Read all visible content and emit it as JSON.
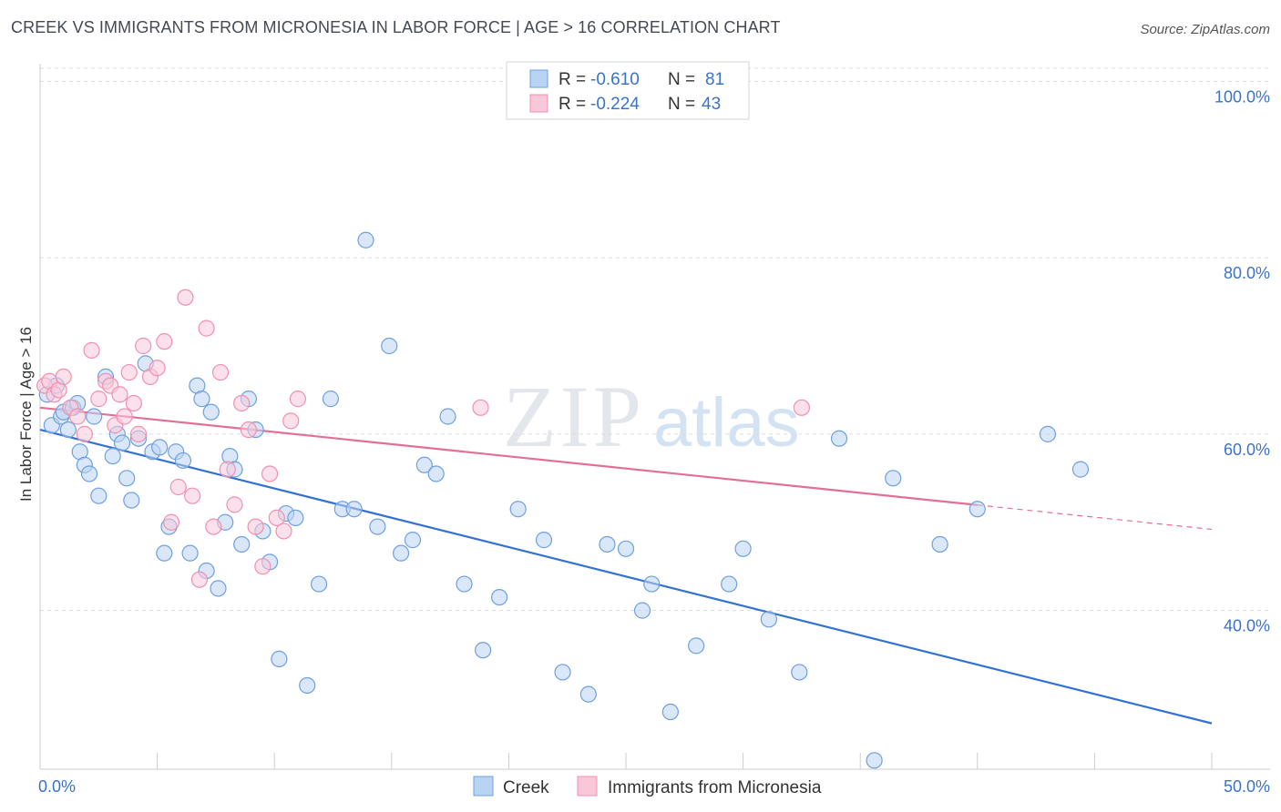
{
  "title": "CREEK VS IMMIGRANTS FROM MICRONESIA IN LABOR FORCE | AGE > 16 CORRELATION CHART",
  "source": "Source: ZipAtlas.com",
  "watermark": {
    "part1": "ZIP",
    "part2": "atlas"
  },
  "chart_data": {
    "type": "scatter",
    "title": "CREEK VS IMMIGRANTS FROM MICRONESIA IN LABOR FORCE | AGE > 16 CORRELATION CHART",
    "xlabel": "",
    "ylabel": "In Labor Force | Age > 16",
    "xlim": [
      0,
      50
    ],
    "ylim": [
      22,
      102
    ],
    "x_tick_labels": [
      "0.0%",
      "50.0%"
    ],
    "y_ticks": [
      40,
      60,
      80,
      100
    ],
    "y_tick_labels": [
      "40.0%",
      "60.0%",
      "80.0%",
      "100.0%"
    ],
    "grid": "horizontal dashed",
    "legend_placement": "top-center",
    "series": [
      {
        "name": "Creek",
        "color": "#6fa0e0",
        "fill": "#b9d3f3",
        "line_color": "#3272d2",
        "R": "-0.610",
        "N": "81",
        "trend": {
          "x": [
            0,
            50
          ],
          "y": [
            60.5,
            27.2
          ],
          "dashed_from": null
        },
        "x": [
          0.3,
          0.5,
          0.7,
          0.9,
          1.0,
          1.2,
          1.4,
          1.6,
          1.7,
          1.9,
          2.1,
          2.3,
          2.5,
          2.8,
          3.1,
          3.3,
          3.5,
          3.7,
          3.9,
          4.2,
          4.5,
          4.8,
          5.1,
          5.3,
          5.5,
          5.8,
          6.1,
          6.4,
          6.7,
          6.9,
          7.1,
          7.3,
          7.6,
          7.9,
          8.1,
          8.3,
          8.6,
          8.9,
          9.2,
          9.5,
          9.8,
          10.2,
          10.5,
          10.9,
          11.4,
          11.9,
          12.4,
          12.9,
          13.4,
          13.9,
          14.4,
          14.9,
          15.4,
          15.9,
          16.4,
          16.9,
          17.4,
          18.1,
          18.9,
          19.6,
          20.4,
          21.5,
          22.3,
          23.4,
          24.2,
          25.0,
          25.7,
          26.1,
          26.9,
          28.0,
          29.4,
          30.0,
          31.1,
          32.4,
          34.1,
          35.6,
          36.4,
          38.4,
          40.0,
          43.0,
          44.4
        ],
        "y": [
          64.5,
          61.0,
          65.5,
          62.0,
          62.5,
          60.5,
          63.0,
          63.5,
          58.0,
          56.5,
          55.5,
          62.0,
          53.0,
          66.5,
          57.5,
          60.0,
          59.0,
          55.0,
          52.5,
          59.5,
          68.0,
          58.0,
          58.5,
          46.5,
          49.5,
          58.0,
          57.0,
          46.5,
          65.5,
          64.0,
          44.5,
          62.5,
          42.5,
          50.0,
          57.5,
          56.0,
          47.5,
          64.0,
          60.5,
          49.0,
          45.5,
          34.5,
          51.0,
          50.5,
          31.5,
          43.0,
          64.0,
          51.5,
          51.5,
          82.0,
          49.5,
          70.0,
          46.5,
          48.0,
          56.5,
          55.5,
          62.0,
          43.0,
          35.5,
          41.5,
          51.5,
          48.0,
          33.0,
          30.5,
          47.5,
          47.0,
          40.0,
          43.0,
          28.5,
          36.0,
          43.0,
          47.0,
          39.0,
          33.0,
          59.5,
          23.0,
          55.0,
          47.5,
          51.5,
          60.0,
          56.0
        ]
      },
      {
        "name": "Immigrants from Micronesia",
        "color": "#f090b0",
        "fill": "#f9c8d8",
        "line_color": "#e07098",
        "R": "-0.224",
        "N": "43",
        "trend": {
          "x": [
            0,
            50
          ],
          "y": [
            63.0,
            49.2
          ],
          "dashed_from": 40
        },
        "x": [
          0.2,
          0.4,
          0.6,
          0.8,
          1.0,
          1.3,
          1.6,
          1.9,
          2.2,
          2.5,
          2.8,
          3.0,
          3.2,
          3.4,
          3.6,
          3.8,
          4.0,
          4.2,
          4.4,
          4.7,
          5.0,
          5.3,
          5.6,
          5.9,
          6.2,
          6.5,
          6.8,
          7.1,
          7.4,
          7.7,
          8.0,
          8.3,
          8.6,
          8.9,
          9.2,
          9.5,
          9.8,
          10.1,
          10.4,
          10.7,
          11.0,
          18.8,
          32.5
        ],
        "y": [
          65.5,
          66.0,
          64.5,
          65.0,
          66.5,
          63.0,
          62.0,
          60.0,
          69.5,
          64.0,
          66.0,
          65.5,
          61.0,
          64.5,
          62.0,
          67.0,
          63.5,
          60.0,
          70.0,
          66.5,
          67.5,
          70.5,
          50.0,
          54.0,
          75.5,
          53.0,
          43.5,
          72.0,
          49.5,
          67.0,
          56.0,
          52.0,
          63.5,
          60.5,
          49.5,
          45.0,
          55.5,
          50.5,
          49.0,
          61.5,
          64.0,
          63.0,
          63.0
        ]
      }
    ]
  },
  "legend": {
    "r_label": "R =",
    "n_label": "N =",
    "entries": [
      {
        "r": "-0.610",
        "n": "81"
      },
      {
        "r": "-0.224",
        "n": "43"
      }
    ]
  },
  "bottom_legend": [
    "Creek",
    "Immigrants from Micronesia"
  ],
  "axis": {
    "x_min_label": "0.0%",
    "x_max_label": "50.0%"
  }
}
